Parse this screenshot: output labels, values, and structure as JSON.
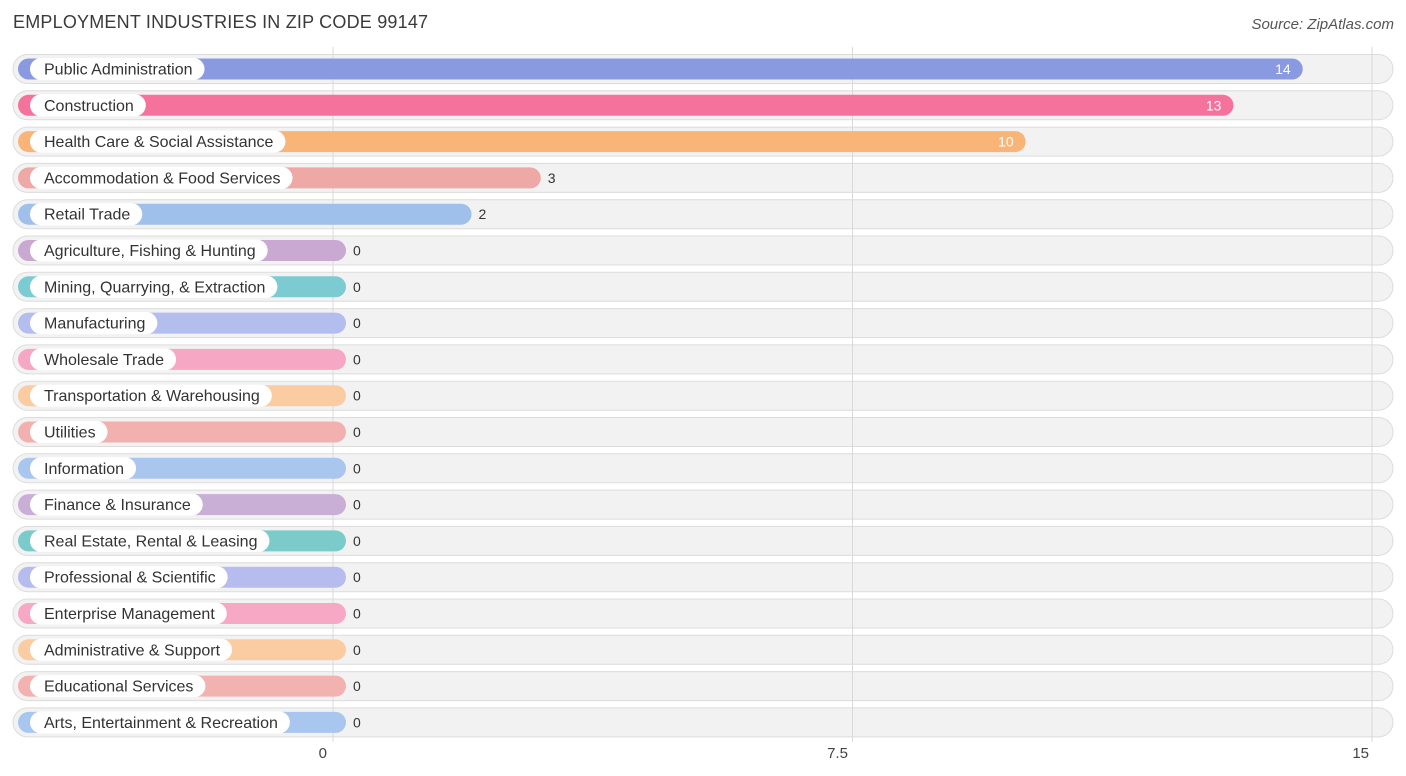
{
  "header": {
    "title": "EMPLOYMENT INDUSTRIES IN ZIP CODE 99147",
    "source": "Source: ZipAtlas.com"
  },
  "chart_data": {
    "type": "bar",
    "orientation": "horizontal",
    "title": "EMPLOYMENT INDUSTRIES IN ZIP CODE 99147",
    "xlabel": "",
    "ylabel": "",
    "xlim": [
      0,
      15
    ],
    "ticks": [
      {
        "value": 0,
        "label": "0"
      },
      {
        "value": 7.5,
        "label": "7.5"
      },
      {
        "value": 15,
        "label": "15"
      }
    ],
    "grid": true,
    "categories": [
      "Public Administration",
      "Construction",
      "Health Care & Social Assistance",
      "Accommodation & Food Services",
      "Retail Trade",
      "Agriculture, Fishing & Hunting",
      "Mining, Quarrying, & Extraction",
      "Manufacturing",
      "Wholesale Trade",
      "Transportation & Warehousing",
      "Utilities",
      "Information",
      "Finance & Insurance",
      "Real Estate, Rental & Leasing",
      "Professional & Scientific",
      "Enterprise Management",
      "Administrative & Support",
      "Educational Services",
      "Arts, Entertainment & Recreation"
    ],
    "values": [
      14,
      13,
      10,
      3,
      2,
      0,
      0,
      0,
      0,
      0,
      0,
      0,
      0,
      0,
      0,
      0,
      0,
      0,
      0
    ],
    "value_labels": [
      "14",
      "13",
      "10",
      "3",
      "2",
      "0",
      "0",
      "0",
      "0",
      "0",
      "0",
      "0",
      "0",
      "0",
      "0",
      "0",
      "0",
      "0",
      "0"
    ],
    "colors": [
      "#8a9ae0",
      "#f5729c",
      "#f9b577",
      "#eea8a6",
      "#9fc0ea",
      "#c9a8d2",
      "#7ccbd3",
      "#b3bdee",
      "#f6a7c3",
      "#fbcba1",
      "#f2b1ae",
      "#a9c6ef",
      "#c9aed6",
      "#7ccbcb",
      "#b6bdee",
      "#f6a8c4",
      "#fbcca1",
      "#f2b3b0",
      "#a9c6ef"
    ]
  }
}
